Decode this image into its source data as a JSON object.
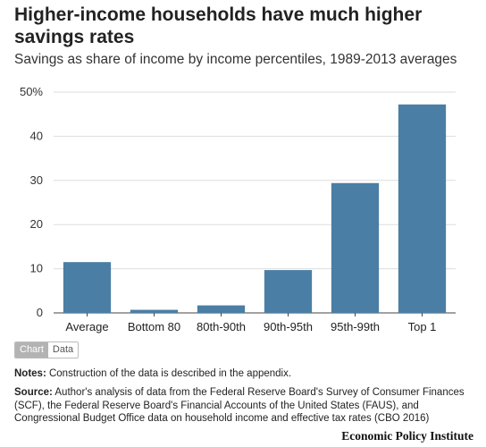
{
  "title": "Higher-income households have much higher savings rates",
  "subtitle": "Savings as share of income by income percentiles, 1989-2013 averages",
  "chart_data": {
    "type": "bar",
    "categories": [
      "Average",
      "Bottom 80",
      "80th-90th",
      "90th-95th",
      "95th-99th",
      "Top 1"
    ],
    "values": [
      11.5,
      0.7,
      1.7,
      9.7,
      29.4,
      47.2
    ],
    "ylim": [
      0,
      50
    ],
    "yticks": [
      0,
      10,
      20,
      30,
      40,
      50
    ],
    "ytick_labels": [
      "0",
      "10",
      "20",
      "30",
      "40",
      "50%"
    ],
    "grid": true,
    "bar_color": "#4a7ea4"
  },
  "toggle": {
    "chart_label": "Chart",
    "data_label": "Data"
  },
  "notes": {
    "label": "Notes:",
    "text": "Construction of the data is  described in the appendix."
  },
  "source": {
    "label": "Source:",
    "text": "Author's analysis of data from the Federal Reserve Board's Survey of Consumer Finances (SCF), the Federal Reserve Board's Financial Accounts of the United States (FAUS), and Congressional Budget Office data on household income and effective tax rates (CBO 2016)"
  },
  "brand": "Economic Policy Institute"
}
